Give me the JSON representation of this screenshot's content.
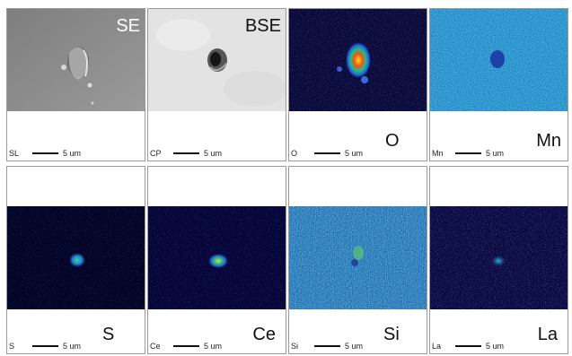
{
  "panels": [
    {
      "label": "SE",
      "prefix": "SL",
      "scale": "5 um"
    },
    {
      "label": "BSE",
      "prefix": "CP",
      "scale": "5 um"
    },
    {
      "label": "O",
      "prefix": "O",
      "scale": "5 um"
    },
    {
      "label": "Mn",
      "prefix": "Mn",
      "scale": "5 um"
    },
    {
      "label": "S",
      "prefix": "S",
      "scale": "5 um"
    },
    {
      "label": "Ce",
      "prefix": "Ce",
      "scale": "5 um"
    },
    {
      "label": "Si",
      "prefix": "Si",
      "scale": "5 um"
    },
    {
      "label": "La",
      "prefix": "La",
      "scale": "5 um"
    }
  ],
  "colors": {
    "map_background": "#0b0a3a",
    "se_background": "#8f8f8f",
    "bse_background": "#e3e3e3",
    "panel_border": "#9a9a9a"
  }
}
